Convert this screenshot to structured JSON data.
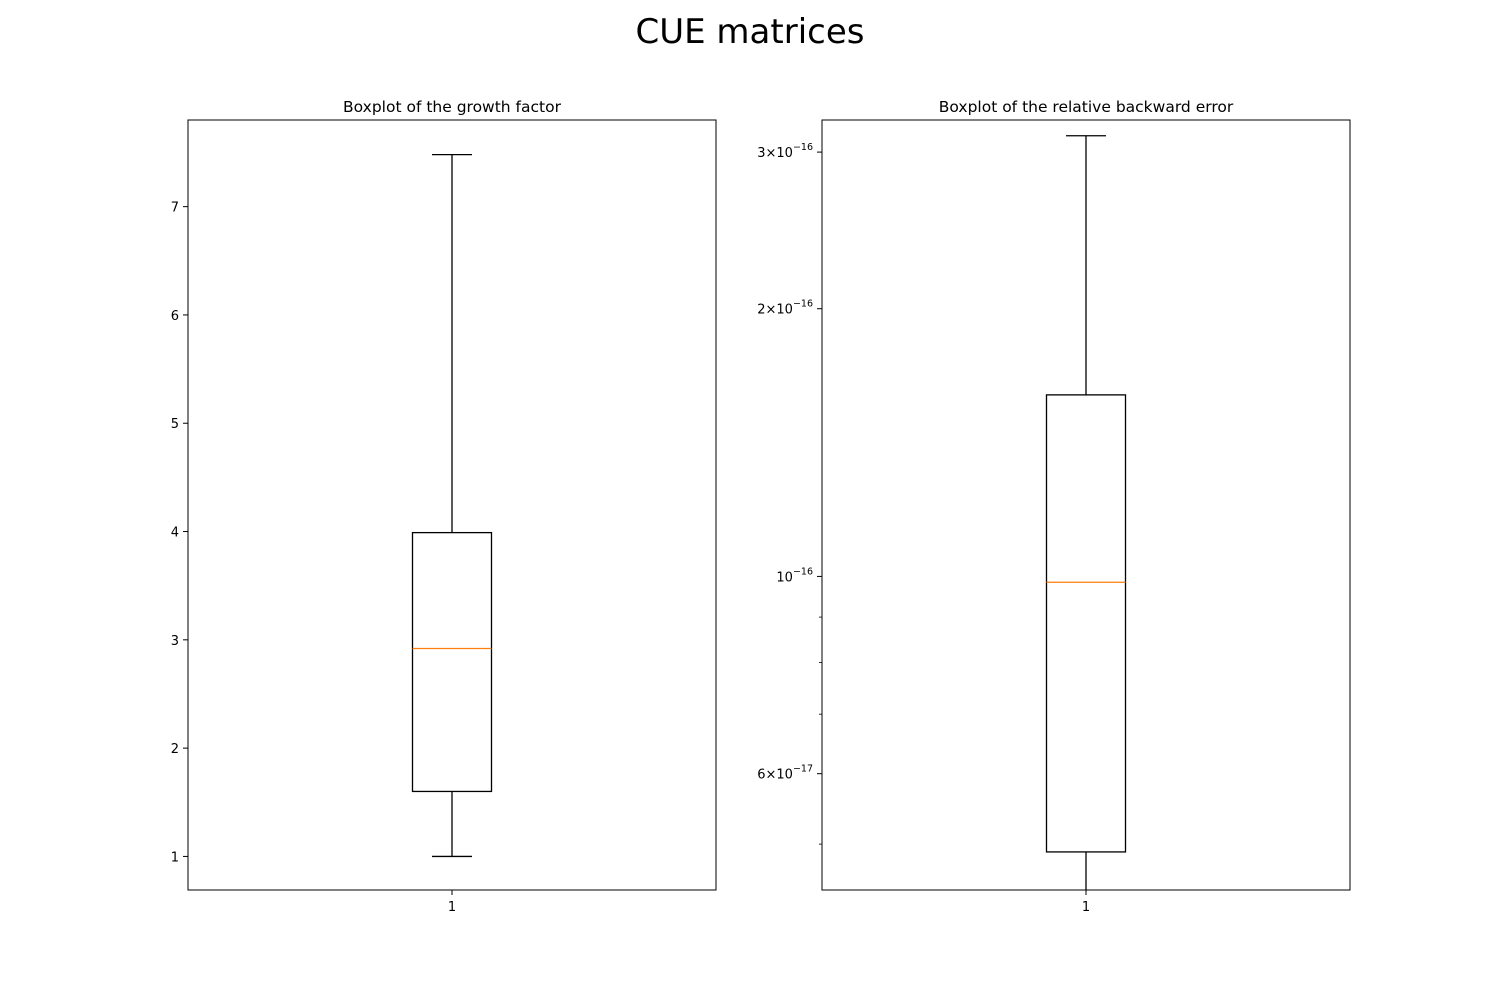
{
  "figure": {
    "title": "CUE matrices"
  },
  "chart_data": [
    {
      "type": "box",
      "title": "Boxplot of the growth factor",
      "yscale": "linear",
      "ylim": [
        0.69,
        7.8
      ],
      "categories": [
        "1"
      ],
      "yticks": [
        {
          "value": 1,
          "label": "1"
        },
        {
          "value": 2,
          "label": "2"
        },
        {
          "value": 3,
          "label": "3"
        },
        {
          "value": 4,
          "label": "4"
        },
        {
          "value": 5,
          "label": "5"
        },
        {
          "value": 6,
          "label": "6"
        },
        {
          "value": 7,
          "label": "7"
        }
      ],
      "boxes": [
        {
          "name": "1",
          "whisker_low": 1.0,
          "q1": 1.6,
          "median": 2.92,
          "q3": 3.99,
          "whisker_high": 7.48
        }
      ],
      "colors": {
        "box": "#000000",
        "median": "#ff7f0e"
      }
    },
    {
      "type": "box",
      "title": "Boxplot of the relative backward error",
      "yscale": "log",
      "ylim": [
        4.44e-17,
        3.26e-16
      ],
      "categories": [
        "1"
      ],
      "yticks": [
        {
          "value": 6e-17,
          "mantissa": "6",
          "exponent": "−17"
        },
        {
          "value": 1e-16,
          "mantissa": "",
          "exponent": "−16"
        },
        {
          "value": 2e-16,
          "mantissa": "2",
          "exponent": "−16"
        },
        {
          "value": 3e-16,
          "mantissa": "3",
          "exponent": "−16"
        }
      ],
      "minor_ticks": [
        5e-17,
        7e-17,
        8e-17,
        9e-17
      ],
      "boxes": [
        {
          "name": "1",
          "whisker_low": 4.44e-17,
          "q1": 4.9e-17,
          "median": 9.85e-17,
          "q3": 1.6e-16,
          "whisker_high": 3.13e-16
        }
      ],
      "colors": {
        "box": "#000000",
        "median": "#ff7f0e"
      }
    }
  ]
}
